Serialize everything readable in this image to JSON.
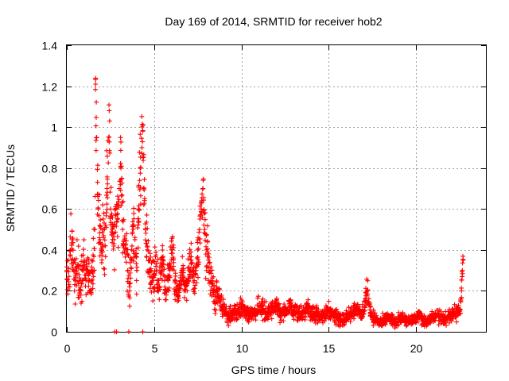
{
  "chart_data": {
    "type": "scatter",
    "title": "Day 169 of 2014, SRMTID for receiver hob2",
    "xlabel": "GPS time / hours",
    "ylabel": "SRMTID / TECUs",
    "xlim": [
      0,
      24
    ],
    "ylim": [
      0,
      1.4
    ],
    "xticks": [
      "0",
      "5",
      "10",
      "15",
      "20"
    ],
    "yticks": [
      "0",
      "0.2",
      "0.4",
      "0.6",
      "0.8",
      "1",
      "1.2",
      "1.4"
    ],
    "grid": true,
    "marker": "+",
    "marker_color": "#ff0000",
    "series": [
      {
        "name": "SRMTID",
        "x": [
          0.0,
          0.1,
          0.2,
          0.3,
          0.4,
          0.5,
          0.6,
          0.7,
          0.8,
          0.9,
          1.0,
          1.1,
          1.2,
          1.3,
          1.4,
          1.5,
          1.6,
          1.65,
          1.7,
          1.8,
          1.9,
          2.0,
          2.1,
          2.2,
          2.3,
          2.4,
          2.45,
          2.5,
          2.6,
          2.7,
          2.8,
          2.9,
          3.0,
          3.1,
          3.15,
          3.2,
          3.3,
          3.4,
          3.5,
          3.6,
          3.7,
          3.8,
          3.9,
          4.0,
          4.1,
          4.2,
          4.3,
          4.35,
          4.4,
          4.5,
          4.6,
          4.7,
          4.8,
          4.9,
          5.0,
          5.1,
          5.2,
          5.3,
          5.4,
          5.5,
          5.6,
          5.7,
          5.8,
          5.9,
          6.0,
          6.1,
          6.2,
          6.3,
          6.4,
          6.5,
          6.6,
          6.7,
          6.8,
          6.9,
          7.0,
          7.1,
          7.2,
          7.3,
          7.4,
          7.5,
          7.6,
          7.7,
          7.8,
          7.9,
          8.0,
          8.1,
          8.2,
          8.3,
          8.4,
          8.5,
          8.6,
          8.7,
          8.8,
          8.9,
          9.0,
          9.2,
          9.4,
          9.6,
          9.8,
          10.0,
          10.2,
          10.4,
          10.6,
          10.8,
          11.0,
          11.2,
          11.4,
          11.6,
          11.8,
          12.0,
          12.2,
          12.4,
          12.6,
          12.8,
          13.0,
          13.2,
          13.4,
          13.6,
          13.8,
          14.0,
          14.2,
          14.4,
          14.6,
          14.8,
          15.0,
          15.2,
          15.4,
          15.6,
          15.8,
          16.0,
          16.2,
          16.4,
          16.6,
          16.8,
          17.0,
          17.2,
          17.4,
          17.6,
          17.8,
          18.0,
          18.2,
          18.4,
          18.6,
          18.8,
          19.0,
          19.2,
          19.4,
          19.6,
          19.8,
          20.0,
          20.2,
          20.4,
          20.6,
          20.8,
          21.0,
          21.2,
          21.4,
          21.6,
          21.8,
          22.0,
          22.2,
          22.4,
          22.5,
          22.6,
          22.65,
          22.7
        ],
        "y": [
          0.3,
          0.22,
          0.4,
          0.45,
          0.3,
          0.25,
          0.32,
          0.28,
          0.2,
          0.3,
          0.35,
          0.25,
          0.3,
          0.2,
          0.25,
          0.3,
          0.5,
          1.21,
          0.95,
          0.6,
          0.45,
          0.4,
          0.5,
          0.42,
          0.7,
          0.95,
          1.03,
          0.6,
          0.5,
          0.45,
          0.6,
          0.55,
          0.7,
          0.8,
          0.75,
          0.5,
          0.45,
          0.4,
          0.3,
          0.2,
          0.35,
          0.5,
          0.45,
          0.3,
          0.6,
          0.8,
          0.9,
          0.98,
          0.7,
          0.5,
          0.4,
          0.35,
          0.3,
          0.25,
          0.28,
          0.32,
          0.25,
          0.22,
          0.3,
          0.35,
          0.25,
          0.2,
          0.25,
          0.3,
          0.4,
          0.35,
          0.25,
          0.18,
          0.2,
          0.25,
          0.3,
          0.25,
          0.2,
          0.25,
          0.3,
          0.35,
          0.3,
          0.25,
          0.3,
          0.4,
          0.5,
          0.6,
          0.7,
          0.5,
          0.4,
          0.35,
          0.3,
          0.25,
          0.2,
          0.15,
          0.2,
          0.18,
          0.15,
          0.12,
          0.1,
          0.08,
          0.07,
          0.09,
          0.1,
          0.12,
          0.1,
          0.08,
          0.09,
          0.1,
          0.12,
          0.11,
          0.09,
          0.1,
          0.12,
          0.13,
          0.1,
          0.09,
          0.11,
          0.12,
          0.1,
          0.09,
          0.08,
          0.1,
          0.12,
          0.1,
          0.09,
          0.08,
          0.07,
          0.08,
          0.1,
          0.09,
          0.08,
          0.07,
          0.06,
          0.07,
          0.08,
          0.1,
          0.11,
          0.09,
          0.1,
          0.2,
          0.08,
          0.06,
          0.05,
          0.05,
          0.06,
          0.07,
          0.06,
          0.05,
          0.06,
          0.07,
          0.06,
          0.05,
          0.06,
          0.07,
          0.08,
          0.06,
          0.05,
          0.06,
          0.07,
          0.08,
          0.07,
          0.06,
          0.07,
          0.08,
          0.09,
          0.1,
          0.1,
          0.2,
          0.3,
          0.35
        ],
        "spread": [
          0.09,
          0.09,
          0.12,
          0.12,
          0.1,
          0.1,
          0.1,
          0.1,
          0.08,
          0.1,
          0.1,
          0.08,
          0.1,
          0.08,
          0.08,
          0.1,
          0.15,
          0.15,
          0.2,
          0.15,
          0.14,
          0.12,
          0.12,
          0.12,
          0.15,
          0.2,
          0.15,
          0.15,
          0.12,
          0.12,
          0.15,
          0.15,
          0.15,
          0.2,
          0.15,
          0.15,
          0.12,
          0.12,
          0.1,
          0.08,
          0.1,
          0.12,
          0.12,
          0.1,
          0.15,
          0.2,
          0.15,
          0.15,
          0.15,
          0.14,
          0.1,
          0.1,
          0.1,
          0.08,
          0.08,
          0.08,
          0.08,
          0.07,
          0.1,
          0.1,
          0.08,
          0.07,
          0.08,
          0.08,
          0.1,
          0.1,
          0.08,
          0.06,
          0.06,
          0.07,
          0.08,
          0.08,
          0.06,
          0.07,
          0.08,
          0.1,
          0.08,
          0.07,
          0.08,
          0.1,
          0.12,
          0.12,
          0.12,
          0.12,
          0.1,
          0.1,
          0.1,
          0.08,
          0.06,
          0.05,
          0.06,
          0.05,
          0.05,
          0.04,
          0.04,
          0.035,
          0.035,
          0.035,
          0.035,
          0.04,
          0.04,
          0.035,
          0.035,
          0.035,
          0.04,
          0.04,
          0.035,
          0.035,
          0.04,
          0.04,
          0.035,
          0.035,
          0.035,
          0.04,
          0.035,
          0.035,
          0.035,
          0.035,
          0.04,
          0.035,
          0.035,
          0.035,
          0.03,
          0.03,
          0.035,
          0.035,
          0.03,
          0.03,
          0.025,
          0.03,
          0.03,
          0.035,
          0.035,
          0.03,
          0.035,
          0.06,
          0.03,
          0.025,
          0.02,
          0.02,
          0.025,
          0.025,
          0.02,
          0.02,
          0.025,
          0.025,
          0.025,
          0.02,
          0.025,
          0.025,
          0.025,
          0.025,
          0.02,
          0.025,
          0.025,
          0.025,
          0.025,
          0.025,
          0.025,
          0.025,
          0.03,
          0.03,
          0.03,
          0.06,
          0.06,
          0.05
        ]
      }
    ],
    "zero_points_x": [
      2.75,
      2.85,
      3.55,
      4.35
    ]
  }
}
